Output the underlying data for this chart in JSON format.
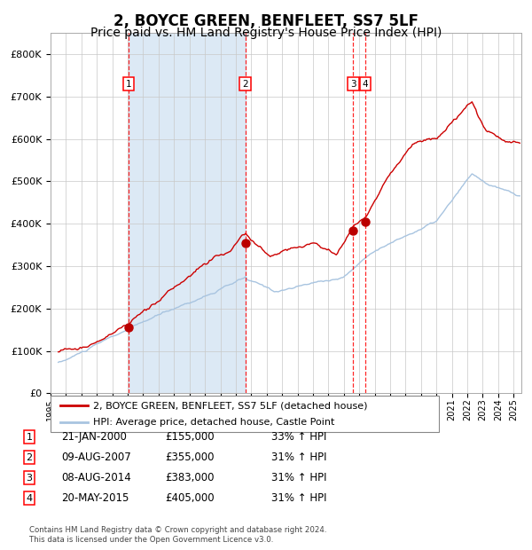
{
  "title": "2, BOYCE GREEN, BENFLEET, SS7 5LF",
  "subtitle": "Price paid vs. HM Land Registry's House Price Index (HPI)",
  "footer": "Contains HM Land Registry data © Crown copyright and database right 2024.\nThis data is licensed under the Open Government Licence v3.0.",
  "legend_line1": "2, BOYCE GREEN, BENFLEET, SS7 5LF (detached house)",
  "legend_line2": "HPI: Average price, detached house, Castle Point",
  "transactions": [
    {
      "num": 1,
      "date": "21-JAN-2000",
      "price": 155000,
      "hpi_pct": "33% ↑ HPI",
      "x_year": 2000.05
    },
    {
      "num": 2,
      "date": "09-AUG-2007",
      "price": 355000,
      "hpi_pct": "31% ↑ HPI",
      "x_year": 2007.61
    },
    {
      "num": 3,
      "date": "08-AUG-2014",
      "price": 383000,
      "hpi_pct": "31% ↑ HPI",
      "x_year": 2014.61
    },
    {
      "num": 4,
      "date": "20-MAY-2015",
      "price": 405000,
      "hpi_pct": "31% ↑ HPI",
      "x_year": 2015.38
    }
  ],
  "shaded_region": [
    2000.05,
    2007.61
  ],
  "hpi_color": "#a8c4e0",
  "price_color": "#cc0000",
  "background_color": "#ffffff",
  "plot_bg_color": "#ffffff",
  "shaded_color": "#dce9f5",
  "grid_color": "#c8c8c8",
  "ylim": [
    0,
    850000
  ],
  "xlim_start": 1995.5,
  "xlim_end": 2025.5,
  "title_fontsize": 12,
  "subtitle_fontsize": 10
}
